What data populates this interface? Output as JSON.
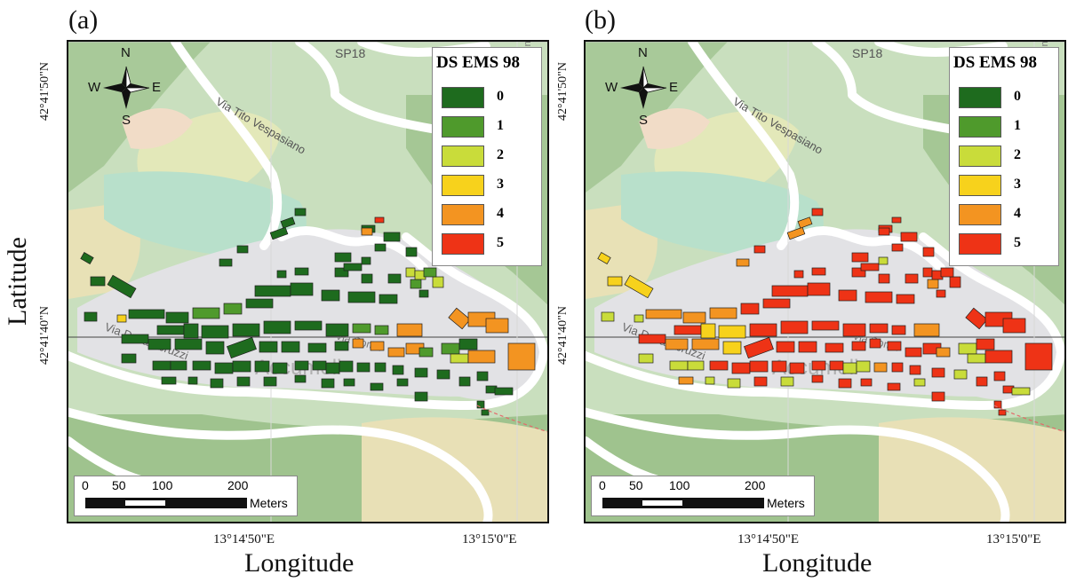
{
  "panels": [
    {
      "id": "a",
      "label": "(a)",
      "legend_title": "DS EMS 98",
      "damage_scheme": "low"
    },
    {
      "id": "b",
      "label": "(b)",
      "legend_title": "DS EMS 98",
      "damage_scheme": "high"
    }
  ],
  "legend_items": [
    {
      "label": "0",
      "color": "#1e6b1e"
    },
    {
      "label": "1",
      "color": "#4f9a2c"
    },
    {
      "label": "2",
      "color": "#c9dc3a"
    },
    {
      "label": "3",
      "color": "#f7d21c"
    },
    {
      "label": "4",
      "color": "#f39421"
    },
    {
      "label": "5",
      "color": "#ee3316"
    }
  ],
  "compass": {
    "n": "N",
    "s": "S",
    "e": "E",
    "w": "W"
  },
  "scalebar": {
    "ticks": [
      "0",
      "50",
      "100",
      "200"
    ],
    "units": "Meters"
  },
  "coords": {
    "lat_top": "42°41'50\"N",
    "lat_bottom": "42°41'40\"N",
    "lon_left": "13°14'50\"E",
    "lon_right": "13°15'0\"E"
  },
  "axis_titles": {
    "x": "Longitude",
    "y": "Latitude"
  },
  "map_labels": {
    "road_sp18": "SP18",
    "via_tito": "Via Tito Vespasiano",
    "via_duca": "Via Duca Abruzzi",
    "town": "Accumoli",
    "via_roma": "Via Roma",
    "via_side": "Via Pigna"
  }
}
